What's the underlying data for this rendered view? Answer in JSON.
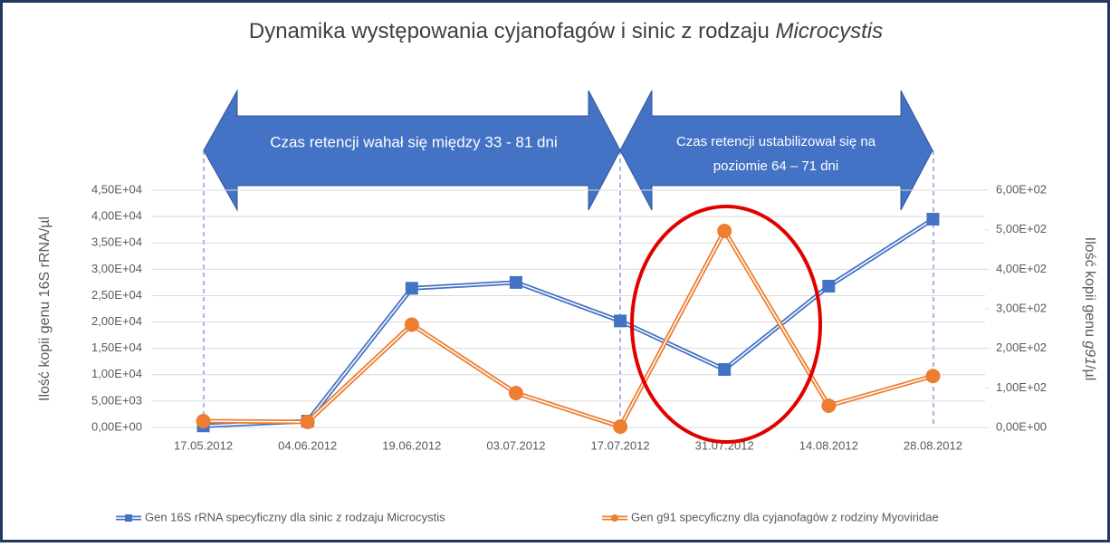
{
  "chart_data": {
    "type": "line",
    "title": [
      "Dynamika występowania cyjanofagów i sinic z rodzaju ",
      "Microcystis"
    ],
    "annotations": [
      [
        "Czas retencji wahał się między 33 - 81 dni"
      ],
      [
        "Czas retencji ustabilizował  się na",
        "poziomie 64 – 71 dni"
      ]
    ],
    "ylabel": "Ilość kopii genu 16S rRNA/µl",
    "y2label": [
      "Ilość kopii genu ",
      "g91",
      "/µl"
    ],
    "categories": [
      "17.05.2012",
      "04.06.2012",
      "19.06.2012",
      "03.07.2012",
      "17.07.2012",
      "31.07.2012",
      "14.08.2012",
      "28.08.2012"
    ],
    "series": [
      {
        "name": "Gen 16S rRNA specyficzny dla sinic z rodzaju Microcystis",
        "color": "#4472c4",
        "marker": "square",
        "axis": "y",
        "values": [
          300,
          1200,
          26400,
          27500,
          20200,
          11000,
          26800,
          39500
        ]
      },
      {
        "name": "Gen g91 specyficzny dla cyjanofagów z rodziny Myoviridae",
        "color": "#ed7d31",
        "marker": "circle",
        "axis": "y2",
        "values": [
          16,
          14,
          260,
          87,
          2,
          497,
          55,
          130
        ]
      }
    ],
    "ylim": [
      0,
      45000
    ],
    "yticks": [
      {
        "value": 0,
        "label": "0,00E+00"
      },
      {
        "value": 5000,
        "label": "5,00E+03"
      },
      {
        "value": 10000,
        "label": "1,00E+04"
      },
      {
        "value": 15000,
        "label": "1,50E+04"
      },
      {
        "value": 20000,
        "label": "2,00E+04"
      },
      {
        "value": 25000,
        "label": "2,50E+04"
      },
      {
        "value": 30000,
        "label": "3,00E+04"
      },
      {
        "value": 35000,
        "label": "3,50E+04"
      },
      {
        "value": 40000,
        "label": "4,00E+04"
      },
      {
        "value": 45000,
        "label": "4,50E+04"
      }
    ],
    "y2lim": [
      0,
      600
    ],
    "y2ticks": [
      {
        "value": 0,
        "label": "0,00E+00"
      },
      {
        "value": 100,
        "label": "1,00E+02"
      },
      {
        "value": 200,
        "label": "2,00E+02"
      },
      {
        "value": 300,
        "label": "3,00E+02"
      },
      {
        "value": 400,
        "label": "4,00E+02"
      },
      {
        "value": 500,
        "label": "5,00E+02"
      },
      {
        "value": 600,
        "label": "6,00E+02"
      }
    ],
    "grid": true,
    "legend": "bottom"
  }
}
